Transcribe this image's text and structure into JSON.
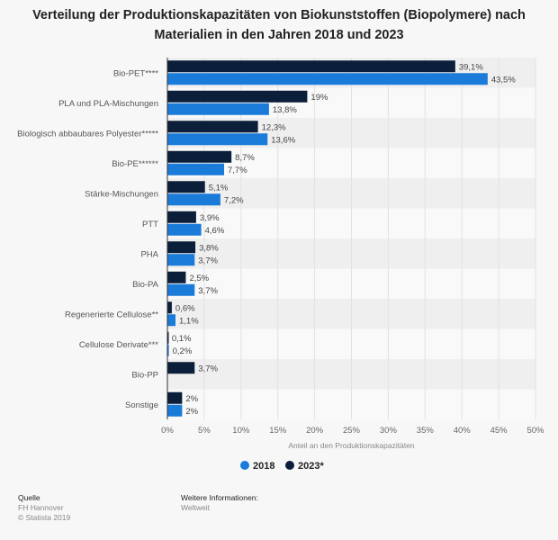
{
  "title": "Verteilung der Produktionskapazitäten von Biokunststoffen (Biopolymere) nach Materialien in den Jahren 2018 und 2023",
  "chart_data": {
    "type": "bar",
    "orientation": "horizontal",
    "categories": [
      "Bio-PET****",
      "PLA und PLA-Mischungen",
      "Biologisch abbaubares Polyester*****",
      "Bio-PE******",
      "Stärke-Mischungen",
      "PTT",
      "PHA",
      "Bio-PA",
      "Regenerierte Cellulose**",
      "Cellulose Derivate***",
      "Bio-PP",
      "Sonstige"
    ],
    "series": [
      {
        "name": "2023*",
        "color": "#0b1e3a",
        "values": [
          39.1,
          19,
          12.3,
          8.7,
          5.1,
          3.9,
          3.8,
          2.5,
          0.6,
          0.1,
          3.7,
          2
        ],
        "labels": [
          "39,1%",
          "19%",
          "12,3%",
          "8,7%",
          "5,1%",
          "3,9%",
          "3,8%",
          "2,5%",
          "0,6%",
          "0,1%",
          "3,7%",
          "2%"
        ]
      },
      {
        "name": "2018",
        "color": "#1a7bd9",
        "values": [
          43.5,
          13.8,
          13.6,
          7.7,
          7.2,
          4.6,
          3.7,
          3.7,
          1.1,
          0.2,
          null,
          2
        ],
        "labels": [
          "43,5%",
          "13,8%",
          "13,6%",
          "7,7%",
          "7,2%",
          "4,6%",
          "3,7%",
          "3,7%",
          "1,1%",
          "0,2%",
          null,
          "2%"
        ]
      }
    ],
    "xlabel": "Anteil an den Produktionskapazitäten",
    "xlim": [
      0,
      50
    ],
    "xticks": [
      "0%",
      "5%",
      "10%",
      "15%",
      "20%",
      "25%",
      "30%",
      "35%",
      "40%",
      "45%",
      "50%"
    ],
    "grid": true,
    "legend": {
      "position": "bottom",
      "entries": [
        {
          "name": "2018",
          "color": "#1a7bd9"
        },
        {
          "name": "2023*",
          "color": "#0b1e3a"
        }
      ]
    }
  },
  "footer": {
    "source_heading": "Quelle",
    "source": "FH Hannover",
    "copyright": "© Statista 2019",
    "info_heading": "Weitere Informationen:",
    "info": "Weltweit"
  }
}
